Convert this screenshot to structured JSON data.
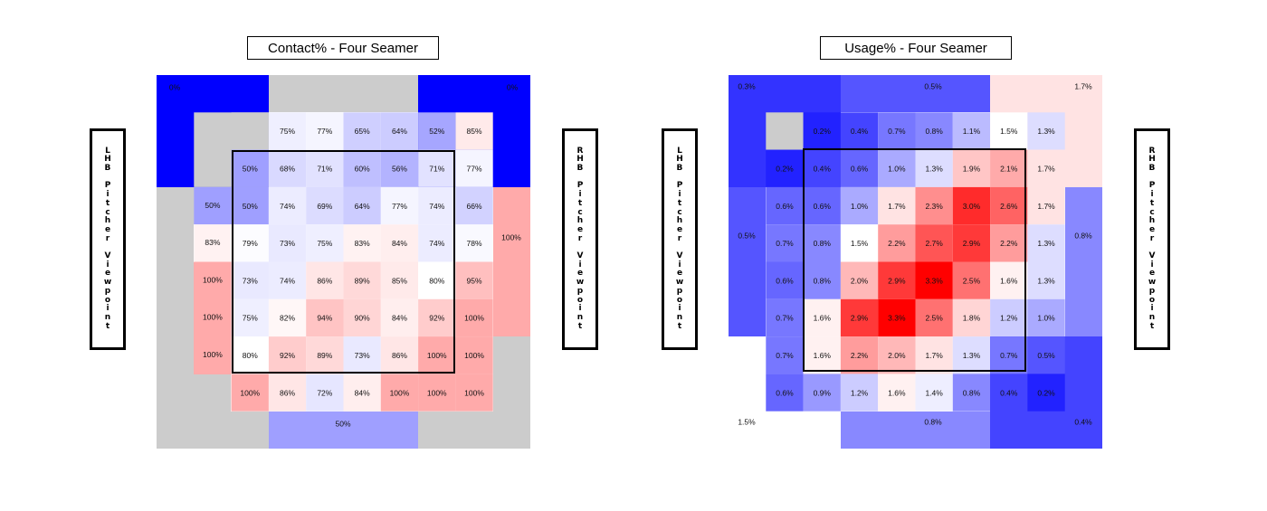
{
  "chart_data": [
    {
      "type": "heatmap",
      "title": "Contact% - Four Seamer",
      "left_label": "LHB Pitcher Viewpoint",
      "right_label": "RHB Pitcher Viewpoint",
      "unit": "%",
      "color_scale": {
        "low": "#0000ff",
        "mid": "#ffffff",
        "high": "#ff0000"
      },
      "null_color": "#cccccc",
      "inner_grid": [
        [
          "",
          "75%",
          "77%",
          "65%",
          "64%",
          "52%",
          "85%"
        ],
        [
          "50%",
          "68%",
          "71%",
          "60%",
          "56%",
          "71%",
          "77%"
        ],
        [
          "50%",
          "74%",
          "69%",
          "64%",
          "77%",
          "74%",
          "66%"
        ],
        [
          "79%",
          "73%",
          "75%",
          "83%",
          "84%",
          "74%",
          "78%"
        ],
        [
          "73%",
          "74%",
          "86%",
          "89%",
          "85%",
          "80%",
          "95%"
        ],
        [
          "75%",
          "82%",
          "94%",
          "90%",
          "84%",
          "92%",
          "100%"
        ],
        [
          "80%",
          "92%",
          "89%",
          "73%",
          "86%",
          "100%",
          "100%"
        ],
        [
          "100%",
          "86%",
          "72%",
          "84%",
          "100%",
          "100%",
          "100%"
        ]
      ],
      "inner_fill": [
        [
          null,
          75,
          77,
          65,
          64,
          52,
          85
        ],
        [
          50,
          68,
          71,
          60,
          56,
          71,
          77
        ],
        [
          50,
          74,
          69,
          64,
          77,
          74,
          66
        ],
        [
          79,
          73,
          75,
          83,
          84,
          74,
          78
        ],
        [
          73,
          74,
          86,
          89,
          85,
          80,
          95
        ],
        [
          75,
          82,
          94,
          90,
          84,
          92,
          100
        ],
        [
          80,
          92,
          89,
          73,
          86,
          100,
          100
        ],
        [
          100,
          86,
          72,
          84,
          100,
          100,
          100
        ]
      ],
      "zones": {
        "top_left": {
          "label": "0%",
          "value": 0
        },
        "top_middle": {
          "label": "",
          "value": null
        },
        "top_right": {
          "label": "0%",
          "value": 0
        },
        "left_upper": {
          "label": "",
          "value": null
        },
        "left_mid_a": {
          "label": "50%",
          "value": 50
        },
        "left_mid_b": {
          "label": "83%",
          "value": 83
        },
        "left_lower": {
          "label": "100%",
          "value": 100
        },
        "right_upper": {
          "label": "",
          "value": null
        },
        "right_mid": {
          "label": "100%",
          "value": 100
        },
        "right_lower": {
          "label": "",
          "value": null
        },
        "bottom_left": {
          "label": "",
          "value": null
        },
        "bottom_middle": {
          "label": "50%",
          "value": 50
        },
        "bottom_right": {
          "label": "",
          "value": null
        }
      }
    },
    {
      "type": "heatmap",
      "title": "Usage% - Four Seamer",
      "left_label": "LHB Pitcher Viewpoint",
      "right_label": "RHB Pitcher Viewpoint",
      "unit": "%",
      "color_scale": {
        "low": "#0000ff",
        "mid": "#ffffff",
        "high": "#ff0000"
      },
      "null_color": "#cccccc",
      "inner_grid": [
        [
          "",
          "0.2%",
          "0.4%",
          "0.7%",
          "0.8%",
          "1.1%",
          "1.5%",
          "1.3%"
        ],
        [
          "0.2%",
          "0.4%",
          "0.6%",
          "1.0%",
          "1.3%",
          "1.9%",
          "2.1%",
          "1.7%"
        ],
        [
          "0.6%",
          "0.6%",
          "1.0%",
          "1.7%",
          "2.3%",
          "3.0%",
          "2.6%",
          "1.7%"
        ],
        [
          "0.7%",
          "0.8%",
          "1.5%",
          "2.2%",
          "2.7%",
          "2.9%",
          "2.2%",
          "1.3%"
        ],
        [
          "0.6%",
          "0.8%",
          "2.0%",
          "2.9%",
          "3.3%",
          "2.5%",
          "1.6%",
          "1.3%"
        ],
        [
          "0.7%",
          "1.6%",
          "2.9%",
          "3.3%",
          "2.5%",
          "1.8%",
          "1.2%",
          "1.0%"
        ],
        [
          "0.7%",
          "1.6%",
          "2.2%",
          "2.0%",
          "1.7%",
          "1.3%",
          "0.7%",
          "0.5%"
        ],
        [
          "0.6%",
          "0.9%",
          "1.2%",
          "1.6%",
          "1.4%",
          "0.8%",
          "0.4%",
          "0.2%"
        ]
      ],
      "inner_fill": [
        [
          null,
          0.2,
          0.4,
          0.7,
          0.8,
          1.1,
          1.5,
          1.3
        ],
        [
          0.2,
          0.4,
          0.6,
          1.0,
          1.3,
          1.9,
          2.1,
          1.7
        ],
        [
          0.6,
          0.6,
          1.0,
          1.7,
          2.3,
          3.0,
          2.6,
          1.7
        ],
        [
          0.7,
          0.8,
          1.5,
          2.2,
          2.7,
          2.9,
          2.2,
          1.3
        ],
        [
          0.6,
          0.8,
          2.0,
          2.9,
          3.3,
          2.5,
          1.6,
          1.3
        ],
        [
          0.7,
          1.6,
          2.9,
          3.3,
          2.5,
          1.8,
          1.2,
          1.0
        ],
        [
          0.7,
          1.6,
          2.2,
          2.0,
          1.7,
          1.3,
          0.7,
          0.5
        ],
        [
          0.6,
          0.9,
          1.2,
          1.6,
          1.4,
          0.8,
          0.4,
          0.2
        ]
      ],
      "zones": {
        "top_left": {
          "label": "0.3%",
          "value": 0.3
        },
        "top_middle": {
          "label": "0.5%",
          "value": 0.5
        },
        "top_right": {
          "label": "1.7%",
          "value": 1.7
        },
        "left_mid": {
          "label": "0.5%",
          "value": 0.5
        },
        "right_mid": {
          "label": "0.8%",
          "value": 0.8
        },
        "bottom_left": {
          "label": "1.5%",
          "value": 1.5
        },
        "bottom_middle": {
          "label": "0.8%",
          "value": 0.8
        },
        "bottom_right": {
          "label": "0.4%",
          "value": 0.4
        }
      }
    }
  ]
}
